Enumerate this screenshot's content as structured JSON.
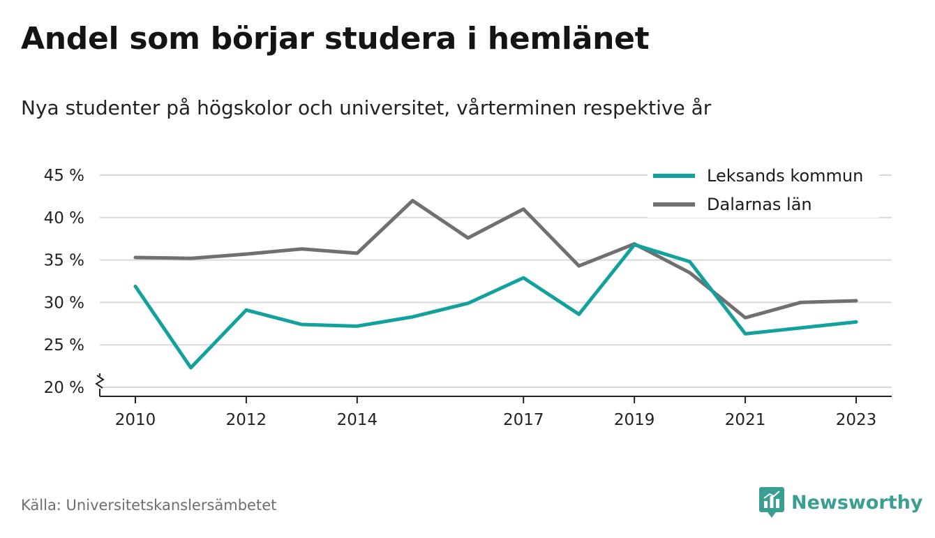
{
  "header": {
    "title": "Andel som börjar studera i hemlänet",
    "subtitle": "Nya studenter på högskolor och universitet, vårterminen respektive år"
  },
  "footer": {
    "source": "Källa: Universitetskanslersämbetet",
    "brand": "Newsworthy",
    "brand_icon": "bar-chart-speech-bubble-icon",
    "brand_color": "#3a9e93"
  },
  "chart_data": {
    "type": "line",
    "x": [
      2010,
      2011,
      2012,
      2013,
      2014,
      2015,
      2016,
      2017,
      2018,
      2019,
      2020,
      2021,
      2022,
      2023
    ],
    "x_tick_values": [
      2010,
      2012,
      2014,
      2017,
      2019,
      2021,
      2023
    ],
    "x_tick_labels": [
      "2010",
      "2012",
      "2014",
      "2017",
      "2019",
      "2021",
      "2023"
    ],
    "y_tick_values": [
      20,
      25,
      30,
      35,
      40,
      45
    ],
    "y_tick_labels": [
      "20 %",
      "25 %",
      "30 %",
      "35 %",
      "40 %",
      "45 %"
    ],
    "ylim": [
      20,
      45
    ],
    "y_axis_break": true,
    "grid": "horizontal",
    "legend_position": "top-right",
    "series": [
      {
        "name": "Leksands kommun",
        "color": "#13a19b",
        "values": [
          31.9,
          22.3,
          29.1,
          27.4,
          27.2,
          28.3,
          29.9,
          32.9,
          28.6,
          36.8,
          34.8,
          26.3,
          27.0,
          27.7
        ]
      },
      {
        "name": "Dalarnas län",
        "color": "#707073",
        "values": [
          35.3,
          35.2,
          35.7,
          36.3,
          35.8,
          42.0,
          37.6,
          41.0,
          34.3,
          36.9,
          33.5,
          28.2,
          30.0,
          30.2
        ]
      }
    ]
  }
}
